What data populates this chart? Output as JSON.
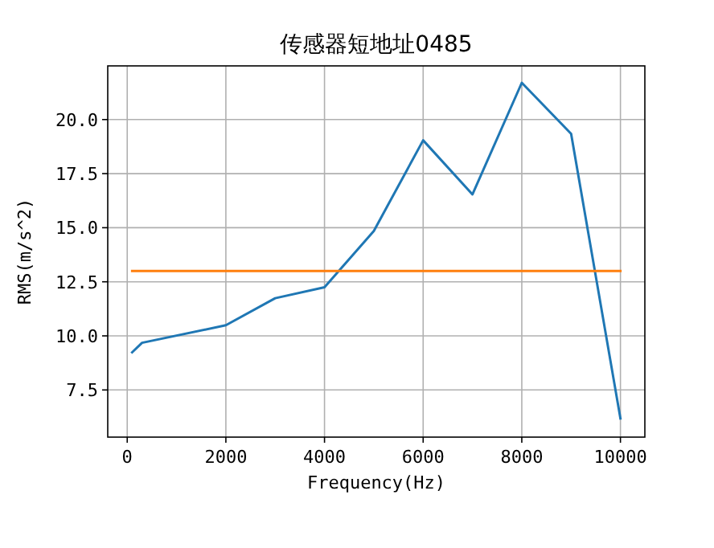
{
  "chart_data": {
    "type": "line",
    "title": "传感器短地址0485",
    "xlabel": "Frequency(Hz)",
    "ylabel": "RMS(m/s^2)",
    "xlim": [
      -395,
      10495
    ],
    "ylim": [
      5.32,
      22.48
    ],
    "xticks": [
      0,
      2000,
      4000,
      6000,
      8000,
      10000
    ],
    "yticks": [
      {
        "value": 7.5,
        "label": "7.5"
      },
      {
        "value": 10,
        "label": "10.0"
      },
      {
        "value": 12.5,
        "label": "12.5"
      },
      {
        "value": 15,
        "label": "15.0"
      },
      {
        "value": 17.5,
        "label": "17.5"
      },
      {
        "value": 20,
        "label": "20.0"
      }
    ],
    "grid": true,
    "series": [
      {
        "color": "#1f77b4",
        "x": [
          100,
          300,
          2000,
          3000,
          4000,
          5000,
          6000,
          7000,
          8000,
          9000,
          10000
        ],
        "values": [
          9.24,
          9.68,
          10.49,
          11.74,
          12.25,
          14.85,
          19.04,
          16.54,
          21.7,
          19.34,
          6.18
        ]
      },
      {
        "color": "#ff7f0e",
        "x": [
          100,
          10000
        ],
        "values": [
          13.0,
          13.0
        ]
      }
    ]
  }
}
